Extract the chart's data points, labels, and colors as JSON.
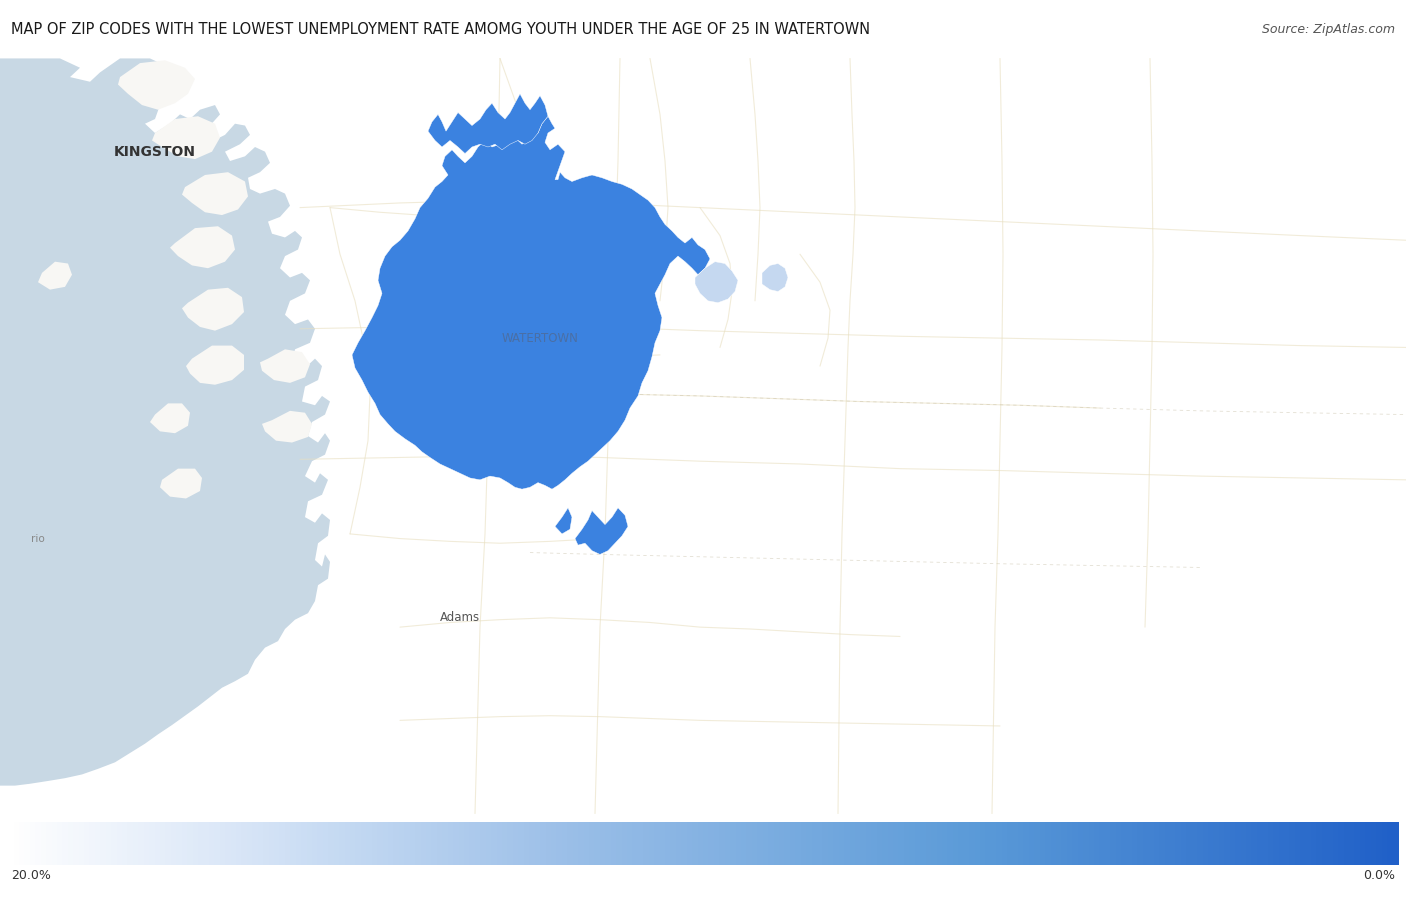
{
  "title": "MAP OF ZIP CODES WITH THE LOWEST UNEMPLOYMENT RATE AMOMG YOUTH UNDER THE AGE OF 25 IN WATERTOWN",
  "source": "Source: ZipAtlas.com",
  "colorbar_left_label": "20.0%",
  "colorbar_right_label": "0.0%",
  "background_color": "#ffffff",
  "title_fontsize": 10.5,
  "source_fontsize": 9,
  "watertown_label": "WATERTOWN",
  "watertown_label_color": "#4a6fa5",
  "watertown_label_fontsize": 8.5,
  "kingston_label": "KINGSTON",
  "kingston_label_color": "#333333",
  "kingston_label_fontsize": 10,
  "adams_label": "Adams",
  "adams_label_color": "#555555",
  "adams_label_fontsize": 8.5,
  "rio_label": "rio",
  "rio_label_color": "#888888",
  "rio_label_fontsize": 7.5,
  "main_blue": "#3b82e0",
  "light_blue": "#c5d8f0",
  "water_color": "#c8d8e4",
  "land_white": "#f8f7f4",
  "road_color": "#e8dfc0",
  "bg_land": "#f2f0ec"
}
